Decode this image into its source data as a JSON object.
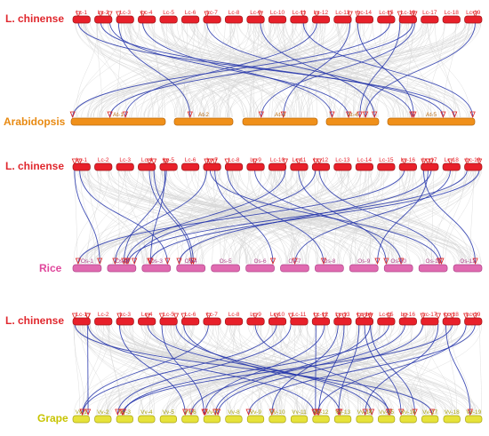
{
  "panels": [
    {
      "top_label": "L. chinense",
      "top_chromosomes": [
        "Lc-1",
        "Lc-2",
        "Lc-3",
        "Lc-4",
        "Lc-5",
        "Lc-6",
        "Lc-7",
        "Lc-8",
        "Lc-9",
        "Lc-10",
        "Lc-11",
        "Lc-12",
        "Lc-13",
        "Lc-14",
        "Lc-15",
        "Lc-16",
        "Lc-17",
        "Lc-18",
        "Lc-19"
      ],
      "bottom_label": "Arabidopsis",
      "bottom_chromosomes": [
        "At-1",
        "At-2",
        "At-3",
        "At-4",
        "At-5"
      ],
      "bottom_label_color": "#e88a12",
      "bottom_chr_fill": "#f0901a",
      "bottom_chr_stroke": "#b86a10"
    },
    {
      "top_label": "L. chinense",
      "top_chromosomes": [
        "Lc-1",
        "Lc-2",
        "Lc-3",
        "Lc-4",
        "Lc-5",
        "Lc-6",
        "Lc-7",
        "Lc-8",
        "Lc-9",
        "Lc-10",
        "Lc-11",
        "Lc-12",
        "Lc-13",
        "Lc-14",
        "Lc-15",
        "Lc-16",
        "Lc-17",
        "Lc-18",
        "Lc-19"
      ],
      "bottom_label": "Rice",
      "bottom_chromosomes": [
        "Os-1",
        "Os-2",
        "Os-3",
        "Os-4",
        "Os-5",
        "Os-6",
        "Os-7",
        "Os-8",
        "Os-9",
        "Os-10",
        "Os-11",
        "Os-12"
      ],
      "bottom_label_color": "#e0479c",
      "bottom_chr_fill": "#e06ab0",
      "bottom_chr_stroke": "#b0448a"
    },
    {
      "top_label": "L. chinense",
      "top_chromosomes": [
        "Lc-1",
        "Lc-2",
        "Lc-3",
        "Lc-4",
        "Lc-5",
        "Lc-6",
        "Lc-7",
        "Lc-8",
        "Lc-9",
        "Lc-10",
        "Lc-11",
        "Lc-12",
        "Lc-13",
        "Lc-14",
        "Lc-15",
        "Lc-16",
        "Lc-17",
        "Lc-18",
        "Lc-19"
      ],
      "bottom_label": "Grape",
      "bottom_chromosomes": [
        "Vv-1",
        "Vv-2",
        "Vv-3",
        "Vv-4",
        "Vv-5",
        "Vv-6",
        "Vv-7",
        "Vv-8",
        "Vv-9",
        "Vv-10",
        "Vv-11",
        "Vv-12",
        "Vv-13",
        "Vv-14",
        "Vv-15",
        "Vv-16",
        "Vv-17",
        "Vv-18",
        "Vv-19"
      ],
      "bottom_label_color": "#c8c400",
      "bottom_chr_fill": "#e6e23a",
      "bottom_chr_stroke": "#a8a414"
    }
  ],
  "colors": {
    "top_label": "#e0282e",
    "top_chr_fill": "#e8202a",
    "top_chr_stroke": "#a01418",
    "background_links": "#d4d4d4",
    "highlight_links": "#2233aa",
    "gene_marker": "#e02020"
  }
}
